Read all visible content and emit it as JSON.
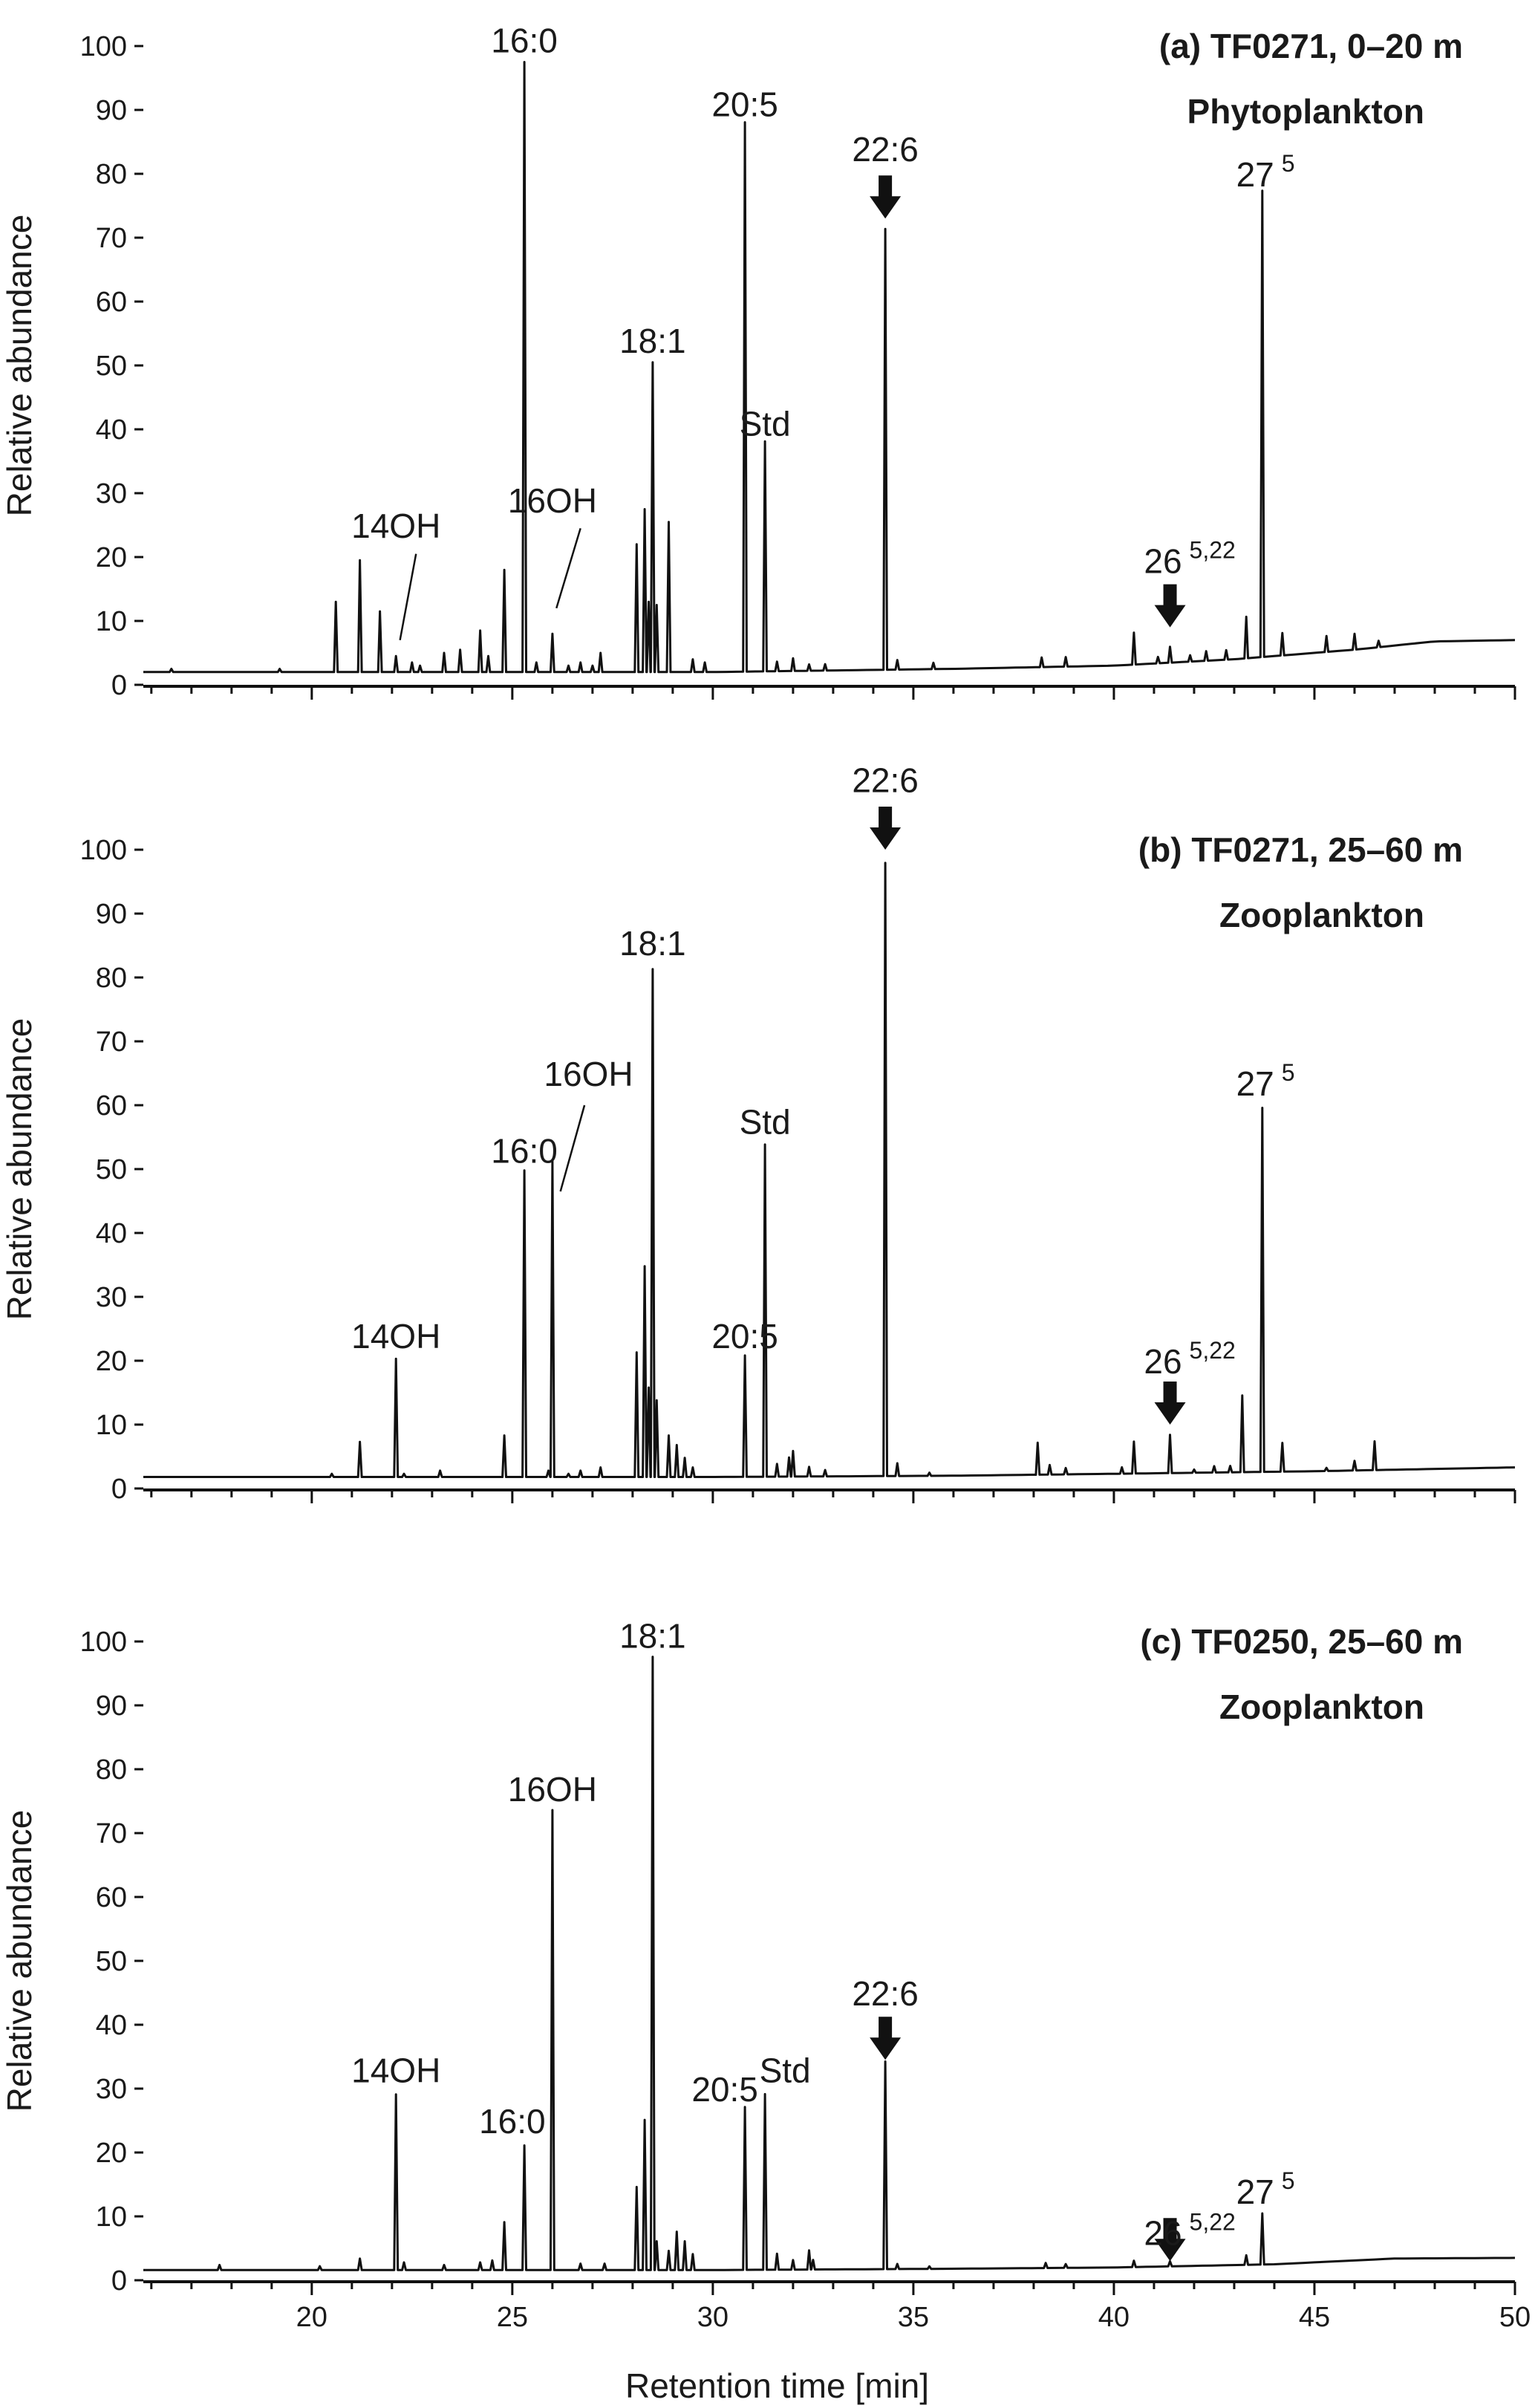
{
  "chart_data": [
    {
      "type": "line",
      "panel": "a",
      "title_line1": "(a) TF0271, 0–20 m",
      "title_line2": "Phytoplankton",
      "ylabel": "Relative abundance",
      "xlabel": "",
      "xlim": [
        15.8,
        50
      ],
      "ylim": [
        0,
        100
      ],
      "y_ticks": [
        "0",
        "10",
        "20",
        "30",
        "40",
        "50",
        "60",
        "70",
        "80",
        "90",
        "100"
      ],
      "baseline": [
        [
          15.8,
          2
        ],
        [
          30,
          2
        ],
        [
          36,
          2.5
        ],
        [
          40,
          3
        ],
        [
          43,
          4
        ],
        [
          46,
          5.5
        ],
        [
          48,
          6.8
        ],
        [
          50,
          7
        ]
      ],
      "peaks": [
        [
          16.5,
          0.5
        ],
        [
          19.2,
          0.5
        ],
        [
          20.6,
          11
        ],
        [
          21.2,
          17.5
        ],
        [
          21.7,
          9.5
        ],
        [
          22.1,
          2.5
        ],
        [
          22.5,
          1.5
        ],
        [
          22.7,
          1
        ],
        [
          23.3,
          3
        ],
        [
          23.7,
          3.5
        ],
        [
          24.2,
          6.5
        ],
        [
          24.4,
          2.5
        ],
        [
          24.8,
          16
        ],
        [
          25.3,
          95.5
        ],
        [
          25.6,
          1.5
        ],
        [
          26.0,
          6
        ],
        [
          26.4,
          1
        ],
        [
          26.7,
          1.5
        ],
        [
          27.0,
          1
        ],
        [
          27.2,
          3
        ],
        [
          28.1,
          20
        ],
        [
          28.3,
          25.5
        ],
        [
          28.4,
          11
        ],
        [
          28.5,
          48.5
        ],
        [
          28.6,
          10.5
        ],
        [
          28.9,
          23.5
        ],
        [
          29.5,
          2
        ],
        [
          29.8,
          1.5
        ],
        [
          30.8,
          86
        ],
        [
          31.3,
          36
        ],
        [
          31.6,
          1.5
        ],
        [
          32.0,
          2
        ],
        [
          32.4,
          1
        ],
        [
          32.8,
          1
        ],
        [
          34.3,
          69
        ],
        [
          34.6,
          1.5
        ],
        [
          35.5,
          1
        ],
        [
          38.2,
          1.5
        ],
        [
          38.8,
          1.5
        ],
        [
          40.5,
          5
        ],
        [
          41.1,
          1
        ],
        [
          41.4,
          2.5
        ],
        [
          41.9,
          1
        ],
        [
          42.3,
          1.5
        ],
        [
          42.8,
          1.5
        ],
        [
          43.3,
          6.5
        ],
        [
          43.7,
          73
        ],
        [
          44.2,
          3.5
        ],
        [
          45.3,
          2.5
        ],
        [
          46.0,
          2.5
        ],
        [
          46.6,
          1
        ]
      ],
      "labels": [
        {
          "text": "16:0",
          "sup": "",
          "x": 25.3,
          "y": 99
        },
        {
          "text": "20:5",
          "sup": "",
          "x": 30.8,
          "y": 89
        },
        {
          "text": "22:6",
          "sup": "",
          "x": 34.3,
          "y": 82
        },
        {
          "text": "27",
          "sup": "5",
          "x": 43.7,
          "y": 78
        },
        {
          "text": "18:1",
          "sup": "",
          "x": 28.5,
          "y": 52
        },
        {
          "text": "Std",
          "sup": "",
          "x": 31.3,
          "y": 39
        },
        {
          "text": "14OH",
          "sup": "",
          "x": 22.1,
          "y": 23
        },
        {
          "text": "16OH",
          "sup": "",
          "x": 26.0,
          "y": 27
        },
        {
          "text": "26",
          "sup": "5,22",
          "x": 41.4,
          "y": 17.5
        }
      ],
      "arrows": [
        {
          "x": 34.3,
          "y": 73
        },
        {
          "x": 41.4,
          "y": 9
        }
      ]
    },
    {
      "type": "line",
      "panel": "b",
      "title_line1": "(b) TF0271, 25–60 m",
      "title_line2": "Zooplankton",
      "ylabel": "Relative abundance",
      "xlabel": "",
      "xlim": [
        15.8,
        50
      ],
      "ylim": [
        0,
        100
      ],
      "y_ticks": [
        "0",
        "10",
        "20",
        "30",
        "40",
        "50",
        "60",
        "70",
        "80",
        "90",
        "100"
      ],
      "baseline": [
        [
          15.8,
          1.8
        ],
        [
          30,
          1.8
        ],
        [
          36,
          2
        ],
        [
          40,
          2.3
        ],
        [
          45,
          2.7
        ],
        [
          50,
          3.3
        ]
      ],
      "peaks": [
        [
          20.5,
          0.5
        ],
        [
          21.2,
          5.5
        ],
        [
          22.1,
          18.5
        ],
        [
          22.3,
          0.5
        ],
        [
          23.2,
          1
        ],
        [
          24.8,
          6.5
        ],
        [
          25.3,
          48
        ],
        [
          25.9,
          1
        ],
        [
          26.0,
          49.5
        ],
        [
          26.4,
          0.5
        ],
        [
          26.7,
          1
        ],
        [
          27.2,
          1.5
        ],
        [
          28.1,
          19.5
        ],
        [
          28.3,
          33
        ],
        [
          28.4,
          14
        ],
        [
          28.5,
          79.5
        ],
        [
          28.6,
          12
        ],
        [
          28.9,
          6.5
        ],
        [
          29.1,
          5
        ],
        [
          29.3,
          3
        ],
        [
          29.5,
          1.5
        ],
        [
          30.8,
          19
        ],
        [
          31.3,
          52
        ],
        [
          31.6,
          2
        ],
        [
          31.9,
          3
        ],
        [
          32.0,
          4
        ],
        [
          32.4,
          1.5
        ],
        [
          32.8,
          1
        ],
        [
          34.3,
          96
        ],
        [
          34.6,
          2
        ],
        [
          35.4,
          0.5
        ],
        [
          38.1,
          5
        ],
        [
          38.4,
          1.5
        ],
        [
          38.8,
          1
        ],
        [
          40.2,
          1
        ],
        [
          40.5,
          5
        ],
        [
          41.4,
          6
        ],
        [
          42.0,
          0.5
        ],
        [
          42.5,
          1
        ],
        [
          42.9,
          1
        ],
        [
          43.2,
          12
        ],
        [
          43.7,
          57
        ],
        [
          44.2,
          4.5
        ],
        [
          45.3,
          0.5
        ],
        [
          46.0,
          1.5
        ],
        [
          46.5,
          4.5
        ]
      ],
      "labels": [
        {
          "text": "22:6",
          "sup": "",
          "x": 34.3,
          "y": 109
        },
        {
          "text": "18:1",
          "sup": "",
          "x": 28.5,
          "y": 83.5
        },
        {
          "text": "16OH",
          "sup": "",
          "x": 26.9,
          "y": 63
        },
        {
          "text": "16:0",
          "sup": "",
          "x": 25.3,
          "y": 51
        },
        {
          "text": "Std",
          "sup": "",
          "x": 31.3,
          "y": 55.5
        },
        {
          "text": "27",
          "sup": "5",
          "x": 43.7,
          "y": 61.5
        },
        {
          "text": "20:5",
          "sup": "",
          "x": 30.8,
          "y": 22
        },
        {
          "text": "14OH",
          "sup": "",
          "x": 22.1,
          "y": 22
        },
        {
          "text": "26",
          "sup": "5,22",
          "x": 41.4,
          "y": 18
        }
      ],
      "arrows": [
        {
          "x": 34.3,
          "y": 100
        },
        {
          "x": 41.4,
          "y": 10
        }
      ]
    },
    {
      "type": "line",
      "panel": "c",
      "title_line1": "(c) TF0250, 25–60 m",
      "title_line2": "Zooplankton",
      "ylabel": "Relative abundance",
      "xlabel": "Retention time [min]",
      "xlim": [
        15.8,
        50
      ],
      "ylim": [
        0,
        100
      ],
      "y_ticks": [
        "0",
        "10",
        "20",
        "30",
        "40",
        "50",
        "60",
        "70",
        "80",
        "90",
        "100"
      ],
      "x_ticks": [
        "20",
        "25",
        "30",
        "35",
        "40",
        "45",
        "50"
      ],
      "baseline": [
        [
          15.8,
          1.6
        ],
        [
          30,
          1.6
        ],
        [
          36,
          1.8
        ],
        [
          40,
          2
        ],
        [
          44,
          2.5
        ],
        [
          47,
          3.4
        ],
        [
          50,
          3.5
        ]
      ],
      "peaks": [
        [
          17.7,
          0.8
        ],
        [
          20.2,
          0.6
        ],
        [
          21.2,
          1.8
        ],
        [
          22.1,
          27.5
        ],
        [
          22.3,
          1.2
        ],
        [
          23.3,
          0.8
        ],
        [
          24.2,
          1.2
        ],
        [
          24.5,
          1.5
        ],
        [
          24.8,
          7.5
        ],
        [
          25.3,
          19.5
        ],
        [
          26.0,
          72
        ],
        [
          26.7,
          1
        ],
        [
          27.3,
          1
        ],
        [
          28.1,
          13
        ],
        [
          28.3,
          23.5
        ],
        [
          28.5,
          96
        ],
        [
          28.6,
          4.5
        ],
        [
          28.9,
          3
        ],
        [
          29.1,
          6
        ],
        [
          29.3,
          4.5
        ],
        [
          29.5,
          2.5
        ],
        [
          30.8,
          25.5
        ],
        [
          31.3,
          27.5
        ],
        [
          31.6,
          2.5
        ],
        [
          32.0,
          1.5
        ],
        [
          32.4,
          3
        ],
        [
          32.5,
          1.5
        ],
        [
          34.3,
          32.5
        ],
        [
          34.6,
          0.8
        ],
        [
          35.4,
          0.4
        ],
        [
          38.3,
          0.8
        ],
        [
          38.8,
          0.6
        ],
        [
          40.5,
          1
        ],
        [
          41.4,
          0.8
        ],
        [
          43.3,
          1.5
        ],
        [
          43.7,
          8
        ]
      ],
      "labels": [
        {
          "text": "18:1",
          "sup": "",
          "x": 28.5,
          "y": 99
        },
        {
          "text": "16OH",
          "sup": "",
          "x": 26.0,
          "y": 75
        },
        {
          "text": "22:6",
          "sup": "",
          "x": 34.3,
          "y": 43
        },
        {
          "text": "14OH",
          "sup": "",
          "x": 22.1,
          "y": 31
        },
        {
          "text": "20:5",
          "sup": "",
          "x": 30.3,
          "y": 28
        },
        {
          "text": "Std",
          "sup": "",
          "x": 31.8,
          "y": 31
        },
        {
          "text": "16:0",
          "sup": "",
          "x": 25.0,
          "y": 23
        },
        {
          "text": "26",
          "sup": "5,22",
          "x": 41.4,
          "y": 5.5
        },
        {
          "text": "27",
          "sup": "5",
          "x": 43.7,
          "y": 12
        }
      ],
      "arrows": [
        {
          "x": 34.3,
          "y": 34.5
        },
        {
          "x": 41.4,
          "y": 3
        }
      ]
    }
  ]
}
